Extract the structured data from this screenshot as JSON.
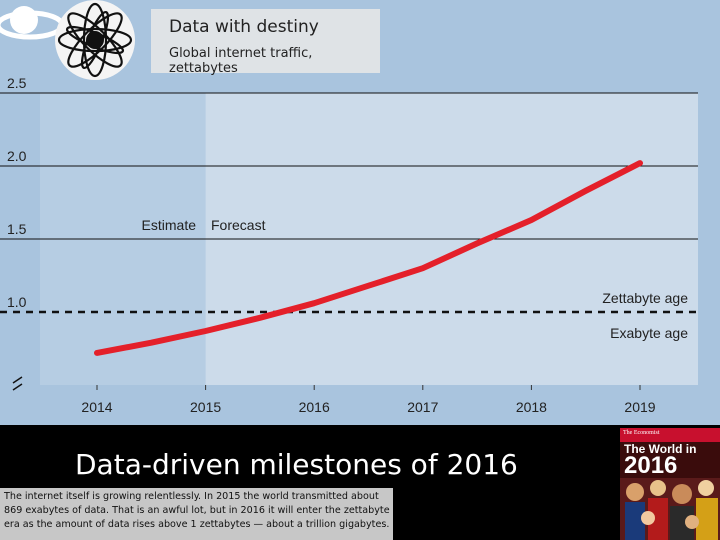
{
  "chart_data": {
    "type": "line",
    "title": "Data with destiny",
    "subtitle": "Global internet traffic, zettabytes",
    "categories": [
      "2014",
      "2015",
      "2016",
      "2017",
      "2018",
      "2019"
    ],
    "x": [
      2014.0,
      2014.5,
      2015.0,
      2015.5,
      2016.0,
      2016.5,
      2017.0,
      2017.5,
      2018.0,
      2018.5,
      2019.0
    ],
    "series": [
      {
        "values": [
          0.72,
          0.79,
          0.87,
          0.96,
          1.06,
          1.18,
          1.3,
          1.47,
          1.63,
          1.83,
          2.02
        ]
      }
    ],
    "ylim": [
      0.5,
      2.5
    ],
    "yticks": [
      "2.5",
      "2.0",
      "1.5",
      "1.0"
    ],
    "grid": true,
    "estimate_end": 2015.0,
    "threshold": 1.0,
    "annotations": {
      "estimate": "Estimate",
      "forecast": "Forecast",
      "above_threshold": "Zettabyte age",
      "below_threshold": "Exabyte age"
    },
    "line_color": "#e4202a"
  },
  "slide": {
    "title": "Data-driven milestones of 2016",
    "caption": "The internet itself is growing relentlessly. In 2015 the world transmitted about 869 exabytes of data. That is an awful lot, but in 2016 it will enter the zettabyte era as the amount of data rises above 1 zettabytes — about a trillion gigabytes."
  },
  "cover": {
    "brand": "The Economist",
    "title": "The World in",
    "year": "2016"
  },
  "colors": {
    "background": "#a9c4de",
    "estimate_region": "#b6cde3",
    "forecast_region": "#ccdbea"
  }
}
